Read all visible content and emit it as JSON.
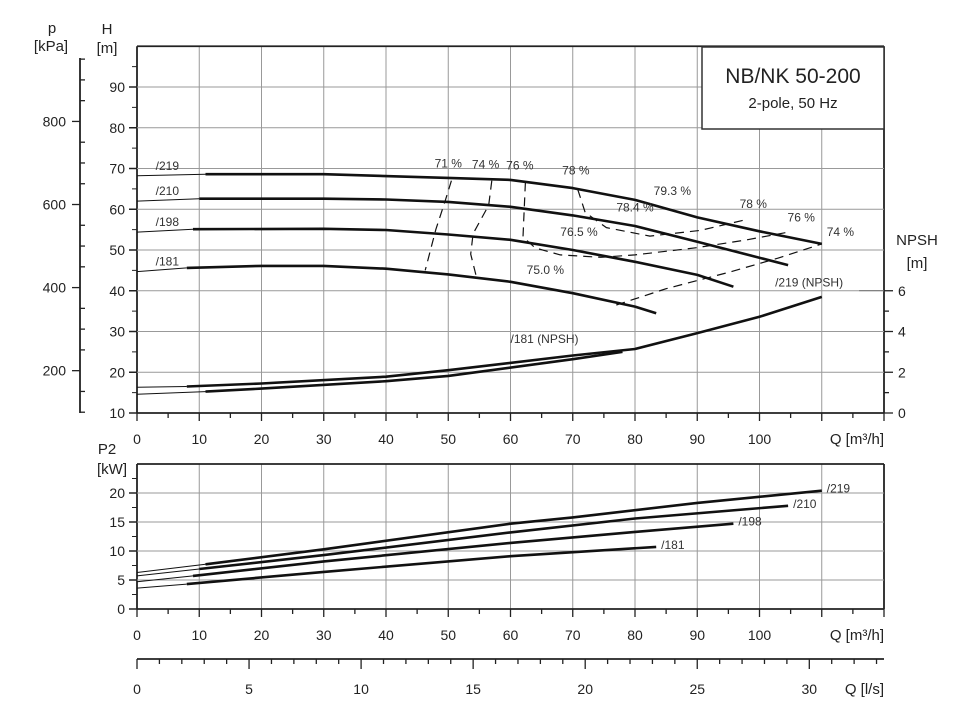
{
  "chart_data": [
    {
      "type": "line",
      "panel": "head",
      "title": "NB/NK 50-200",
      "subtitle": "2-pole, 50 Hz",
      "xlabel": "Q [m³/h]",
      "ylabel": "H",
      "ylabel_unit": "[m]",
      "secondary_ylabel": "p",
      "secondary_ylabel_unit": "[kPa]",
      "npsh_label": "NPSH",
      "npsh_unit": "[m]",
      "xlim": [
        0,
        120
      ],
      "ylim": [
        10,
        100
      ],
      "grid": true,
      "x_ticks": [
        "0",
        "10",
        "20",
        "30",
        "40",
        "50",
        "60",
        "70",
        "80",
        "90",
        "100"
      ],
      "y_ticks": [
        "10",
        "20",
        "30",
        "40",
        "50",
        "60",
        "70",
        "80",
        "90"
      ],
      "p_ticks": [
        "200",
        "400",
        "600",
        "800"
      ],
      "npsh_ticks": [
        "0",
        "2",
        "4",
        "6"
      ],
      "series": [
        {
          "name": "/219",
          "points": [
            [
              0,
              68.2
            ],
            [
              11,
              68.6
            ],
            [
              30,
              68.6
            ],
            [
              50,
              67.7
            ],
            [
              60,
              67.2
            ],
            [
              70,
              65.2
            ],
            [
              80,
              62.3
            ],
            [
              90,
              58
            ],
            [
              100,
              54.6
            ],
            [
              110,
              51.5
            ]
          ]
        },
        {
          "name": "/210",
          "points": [
            [
              0,
              62
            ],
            [
              10,
              62.6
            ],
            [
              30,
              62.6
            ],
            [
              40,
              62.4
            ],
            [
              50,
              61.8
            ],
            [
              60,
              60.6
            ],
            [
              70,
              58.5
            ],
            [
              80,
              55.9
            ],
            [
              90,
              52
            ],
            [
              104.6,
              46.3
            ]
          ]
        },
        {
          "name": "/198",
          "points": [
            [
              0,
              54.4
            ],
            [
              9,
              55.1
            ],
            [
              30,
              55.2
            ],
            [
              40,
              54.9
            ],
            [
              50,
              53.8
            ],
            [
              60,
              52.5
            ],
            [
              70,
              50
            ],
            [
              80,
              47.1
            ],
            [
              90,
              43.9
            ],
            [
              95.8,
              41
            ]
          ]
        },
        {
          "name": "/181",
          "points": [
            [
              0,
              44.7
            ],
            [
              8,
              45.6
            ],
            [
              20,
              46.1
            ],
            [
              30,
              46.1
            ],
            [
              40,
              45.4
            ],
            [
              50,
              44
            ],
            [
              60,
              42.2
            ],
            [
              70,
              39.4
            ],
            [
              80,
              36.1
            ],
            [
              83.4,
              34.5
            ]
          ]
        }
      ],
      "npsh_series": [
        {
          "name": "/219 (NPSH)",
          "points": [
            [
              0,
              1.26
            ],
            [
              8,
              1.3
            ],
            [
              20,
              1.45
            ],
            [
              40,
              1.78
            ],
            [
              50,
              2.1
            ],
            [
              70,
              2.82
            ],
            [
              80,
              3.14
            ],
            [
              90,
              3.92
            ],
            [
              100,
              4.72
            ],
            [
              110,
              5.7
            ]
          ]
        },
        {
          "name": "/181 (NPSH)",
          "points": [
            [
              0,
              0.92
            ],
            [
              11,
              1.05
            ],
            [
              20,
              1.2
            ],
            [
              40,
              1.56
            ],
            [
              50,
              1.82
            ],
            [
              70,
              2.64
            ],
            [
              78,
              3.0
            ]
          ]
        }
      ],
      "efficiency_contours": [
        {
          "label": "71 %",
          "label_at": [
            50,
            70.3
          ],
          "points": [
            [
              50.5,
              67
            ],
            [
              49.5,
              62
            ],
            [
              48,
              55
            ],
            [
              46.3,
              45
            ]
          ]
        },
        {
          "label": "74 %",
          "label_at": [
            56,
            70
          ],
          "points": [
            [
              57,
              67
            ],
            [
              56.5,
              61
            ],
            [
              54,
              54
            ],
            [
              53.6,
              49
            ],
            [
              54.5,
              43.5
            ]
          ]
        },
        {
          "label": "76 %",
          "label_at": [
            61.5,
            69.8
          ],
          "points": [
            [
              62.4,
              66.6
            ],
            [
              62.2,
              60
            ],
            [
              62,
              53.2
            ],
            [
              64,
              50.5
            ],
            [
              68,
              48.8
            ],
            [
              74.5,
              48.2
            ],
            [
              80,
              48.8
            ],
            [
              90,
              50.6
            ],
            [
              98,
              52.5
            ],
            [
              105,
              54.5
            ]
          ]
        },
        {
          "label": "78 %",
          "label_at": [
            70.5,
            68.5
          ],
          "points": [
            [
              70.8,
              64.9
            ],
            [
              72,
              59.2
            ],
            [
              75.4,
              55.5
            ],
            [
              82.4,
              53.4
            ],
            [
              90.5,
              54.8
            ],
            [
              97.4,
              57.3
            ]
          ]
        },
        {
          "label": "74 %",
          "label_at": [
            113,
            53.4
          ],
          "points": [
            [
              77,
              36.5
            ],
            [
              85,
              40.5
            ],
            [
              95,
              44.5
            ],
            [
              103,
              48
            ],
            [
              110,
              51.5
            ]
          ]
        }
      ],
      "efficiency_labels": [
        {
          "text": "79.3 %",
          "at": [
            86,
            63.5
          ]
        },
        {
          "text": "78.4 %",
          "at": [
            80,
            59.4
          ]
        },
        {
          "text": "76.5 %",
          "at": [
            71,
            53.4
          ]
        },
        {
          "text": "75.0 %",
          "at": [
            65.6,
            44.1
          ]
        },
        {
          "text": "78 %",
          "at": [
            99,
            60.3
          ]
        },
        {
          "text": "76 %",
          "at": [
            106.7,
            57
          ]
        }
      ]
    },
    {
      "type": "line",
      "panel": "power",
      "xlabel": "Q [m³/h]",
      "ylabel": "P2",
      "ylabel_unit": "[kW]",
      "xlim": [
        0,
        120
      ],
      "ylim": [
        0,
        25
      ],
      "grid": true,
      "x_ticks": [
        "0",
        "10",
        "20",
        "30",
        "40",
        "50",
        "60",
        "70",
        "80",
        "90",
        "100"
      ],
      "y_ticks": [
        "0",
        "5",
        "10",
        "15",
        "20"
      ],
      "series": [
        {
          "name": "/219",
          "points": [
            [
              0,
              6.3
            ],
            [
              11,
              7.7
            ],
            [
              30,
              10.3
            ],
            [
              60,
              14.7
            ],
            [
              70,
              15.8
            ],
            [
              90,
              18.3
            ],
            [
              110,
              20.4
            ]
          ]
        },
        {
          "name": "/210",
          "points": [
            [
              0,
              5.7
            ],
            [
              10,
              6.9
            ],
            [
              30,
              9.3
            ],
            [
              60,
              13.2
            ],
            [
              80,
              15.6
            ],
            [
              104.6,
              17.8
            ]
          ]
        },
        {
          "name": "/198",
          "points": [
            [
              0,
              4.7
            ],
            [
              9,
              5.7
            ],
            [
              30,
              8.2
            ],
            [
              60,
              11.4
            ],
            [
              80,
              13.3
            ],
            [
              95.8,
              14.7
            ]
          ]
        },
        {
          "name": "/181",
          "points": [
            [
              0,
              3.6
            ],
            [
              8,
              4.3
            ],
            [
              30,
              6.4
            ],
            [
              60,
              9.1
            ],
            [
              83.4,
              10.7
            ]
          ]
        }
      ]
    },
    {
      "type": "axis",
      "panel": "flow-ls",
      "xlabel": "Q [l/s]",
      "x_ticks": [
        "0",
        "5",
        "10",
        "15",
        "20",
        "25",
        "30"
      ]
    }
  ]
}
